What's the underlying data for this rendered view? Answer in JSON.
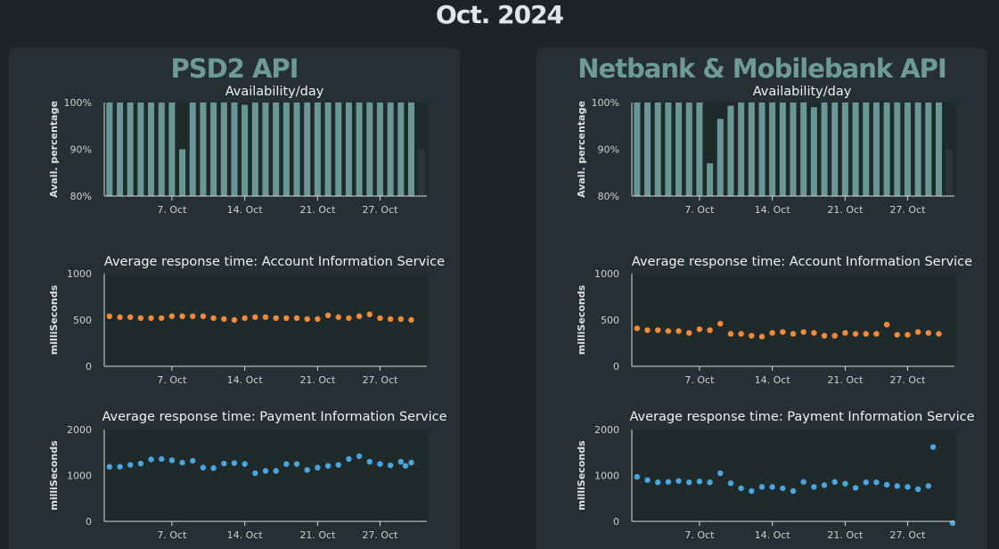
{
  "page": {
    "title": "Oct. 2024"
  },
  "panels": [
    {
      "title": "PSD2 API"
    },
    {
      "title": "Netbank & Mobilebank API"
    }
  ],
  "colors": {
    "bar": "#6b9697",
    "aisPoint": "#f58a3a",
    "pisPoint": "#49a6de",
    "plotBg": "#1f2a2a",
    "axis": "#d8d8d8"
  },
  "chart_data": [
    {
      "panel": "PSD2 API",
      "type": "bar",
      "title": "Availability/day",
      "xlabel": "",
      "ylabel": "Avail. percentage",
      "ylim": [
        80,
        100
      ],
      "yticks": [
        "80%",
        "90%",
        "100%"
      ],
      "xtick_labels": [
        "7. Oct",
        "14. Oct",
        "21. Oct",
        "27. Oct"
      ],
      "x": [
        1,
        2,
        3,
        4,
        5,
        6,
        7,
        8,
        9,
        10,
        11,
        12,
        13,
        14,
        15,
        16,
        17,
        18,
        19,
        20,
        21,
        22,
        23,
        24,
        25,
        26,
        27,
        28,
        29,
        30,
        31
      ],
      "values": [
        100,
        100,
        100,
        100,
        100,
        100,
        100,
        90,
        100,
        100,
        100,
        100,
        100,
        99.5,
        100,
        100,
        100,
        100,
        100,
        100,
        100,
        100,
        100,
        100,
        100,
        100,
        100,
        100,
        100,
        100,
        90
      ]
    },
    {
      "panel": "PSD2 API",
      "type": "scatter",
      "title": "Average response time: Account Information Service",
      "xlabel": "",
      "ylabel": "milliSeconds",
      "ylim": [
        0,
        1000
      ],
      "yticks": [
        "0",
        "500",
        "1000"
      ],
      "xtick_labels": [
        "7. Oct",
        "14. Oct",
        "21. Oct",
        "27. Oct"
      ],
      "x": [
        1,
        2,
        3,
        4,
        5,
        6,
        7,
        8,
        9,
        10,
        11,
        12,
        13,
        14,
        15,
        16,
        17,
        18,
        19,
        20,
        21,
        22,
        23,
        24,
        25,
        26,
        27,
        28,
        29,
        30
      ],
      "values": [
        540,
        530,
        530,
        520,
        520,
        520,
        540,
        540,
        540,
        540,
        520,
        510,
        500,
        520,
        530,
        530,
        520,
        520,
        520,
        510,
        510,
        550,
        530,
        520,
        540,
        560,
        520,
        510,
        510,
        500
      ]
    },
    {
      "panel": "PSD2 API",
      "type": "scatter",
      "title": "Average response time: Payment Information Service",
      "xlabel": "",
      "ylabel": "milliSeconds",
      "ylim": [
        0,
        2000
      ],
      "yticks": [
        "0",
        "1000",
        "2000"
      ],
      "xtick_labels": [
        "7. Oct",
        "14. Oct",
        "21. Oct",
        "27. Oct"
      ],
      "x": [
        1,
        2,
        3,
        4,
        5,
        6,
        7,
        8,
        9,
        10,
        11,
        12,
        13,
        14,
        15,
        16,
        17,
        18,
        19,
        20,
        21,
        22,
        23,
        24,
        25,
        26,
        27,
        28,
        29,
        30,
        31
      ],
      "values": [
        1190,
        1190,
        1230,
        1260,
        1350,
        1360,
        1330,
        1280,
        1320,
        1170,
        1160,
        1260,
        1270,
        1250,
        1050,
        1100,
        1100,
        1250,
        1250,
        1120,
        1170,
        1210,
        1230,
        1360,
        1420,
        1300,
        1250,
        1220,
        1300,
        1280,
        1210
      ]
    },
    {
      "panel": "Netbank & Mobilebank API",
      "type": "bar",
      "title": "Availability/day",
      "xlabel": "",
      "ylabel": "Avail. percentage",
      "ylim": [
        80,
        100
      ],
      "yticks": [
        "80%",
        "90%",
        "100%"
      ],
      "xtick_labels": [
        "7. Oct",
        "14. Oct",
        "21. Oct",
        "27. Oct"
      ],
      "x": [
        1,
        2,
        3,
        4,
        5,
        6,
        7,
        8,
        9,
        10,
        11,
        12,
        13,
        14,
        15,
        16,
        17,
        18,
        19,
        20,
        21,
        22,
        23,
        24,
        25,
        26,
        27,
        28,
        29,
        30,
        31
      ],
      "values": [
        100,
        100,
        100,
        100,
        100,
        100,
        100,
        87,
        96.5,
        99.3,
        100,
        100,
        100,
        100,
        100,
        100,
        100,
        99,
        100,
        100,
        100,
        100,
        100,
        100,
        100,
        100,
        100,
        100,
        100,
        100,
        90
      ]
    },
    {
      "panel": "Netbank & Mobilebank API",
      "type": "scatter",
      "title": "Average response time: Account Information Service",
      "xlabel": "",
      "ylabel": "milliSeconds",
      "ylim": [
        0,
        1000
      ],
      "yticks": [
        "0",
        "500",
        "1000"
      ],
      "xtick_labels": [
        "7. Oct",
        "14. Oct",
        "21. Oct",
        "27. Oct"
      ],
      "x": [
        1,
        2,
        3,
        4,
        5,
        6,
        7,
        8,
        9,
        10,
        11,
        12,
        13,
        14,
        15,
        16,
        17,
        18,
        19,
        20,
        21,
        22,
        23,
        24,
        25,
        26,
        27,
        28,
        29,
        30
      ],
      "values": [
        410,
        390,
        390,
        380,
        380,
        360,
        400,
        390,
        460,
        350,
        350,
        330,
        320,
        360,
        370,
        350,
        370,
        360,
        330,
        330,
        360,
        350,
        350,
        350,
        450,
        340,
        340,
        370,
        360,
        350
      ]
    },
    {
      "panel": "Netbank & Mobilebank API",
      "type": "scatter",
      "title": "Average response time: Payment Information Service",
      "xlabel": "",
      "ylabel": "milliSeconds",
      "ylim": [
        0,
        2000
      ],
      "yticks": [
        "0",
        "1000",
        "2000"
      ],
      "xtick_labels": [
        "7. Oct",
        "14. Oct",
        "21. Oct",
        "27. Oct"
      ],
      "x": [
        1,
        2,
        3,
        4,
        5,
        6,
        7,
        8,
        9,
        10,
        11,
        12,
        13,
        14,
        15,
        16,
        17,
        18,
        19,
        20,
        21,
        22,
        23,
        24,
        25,
        26,
        27,
        28,
        29,
        30,
        31,
        32
      ],
      "values": [
        970,
        900,
        850,
        860,
        880,
        850,
        870,
        850,
        1050,
        830,
        720,
        660,
        750,
        750,
        720,
        660,
        860,
        750,
        790,
        860,
        820,
        730,
        850,
        850,
        800,
        770,
        750,
        700,
        770,
        -1,
        1620,
        0
      ]
    }
  ]
}
